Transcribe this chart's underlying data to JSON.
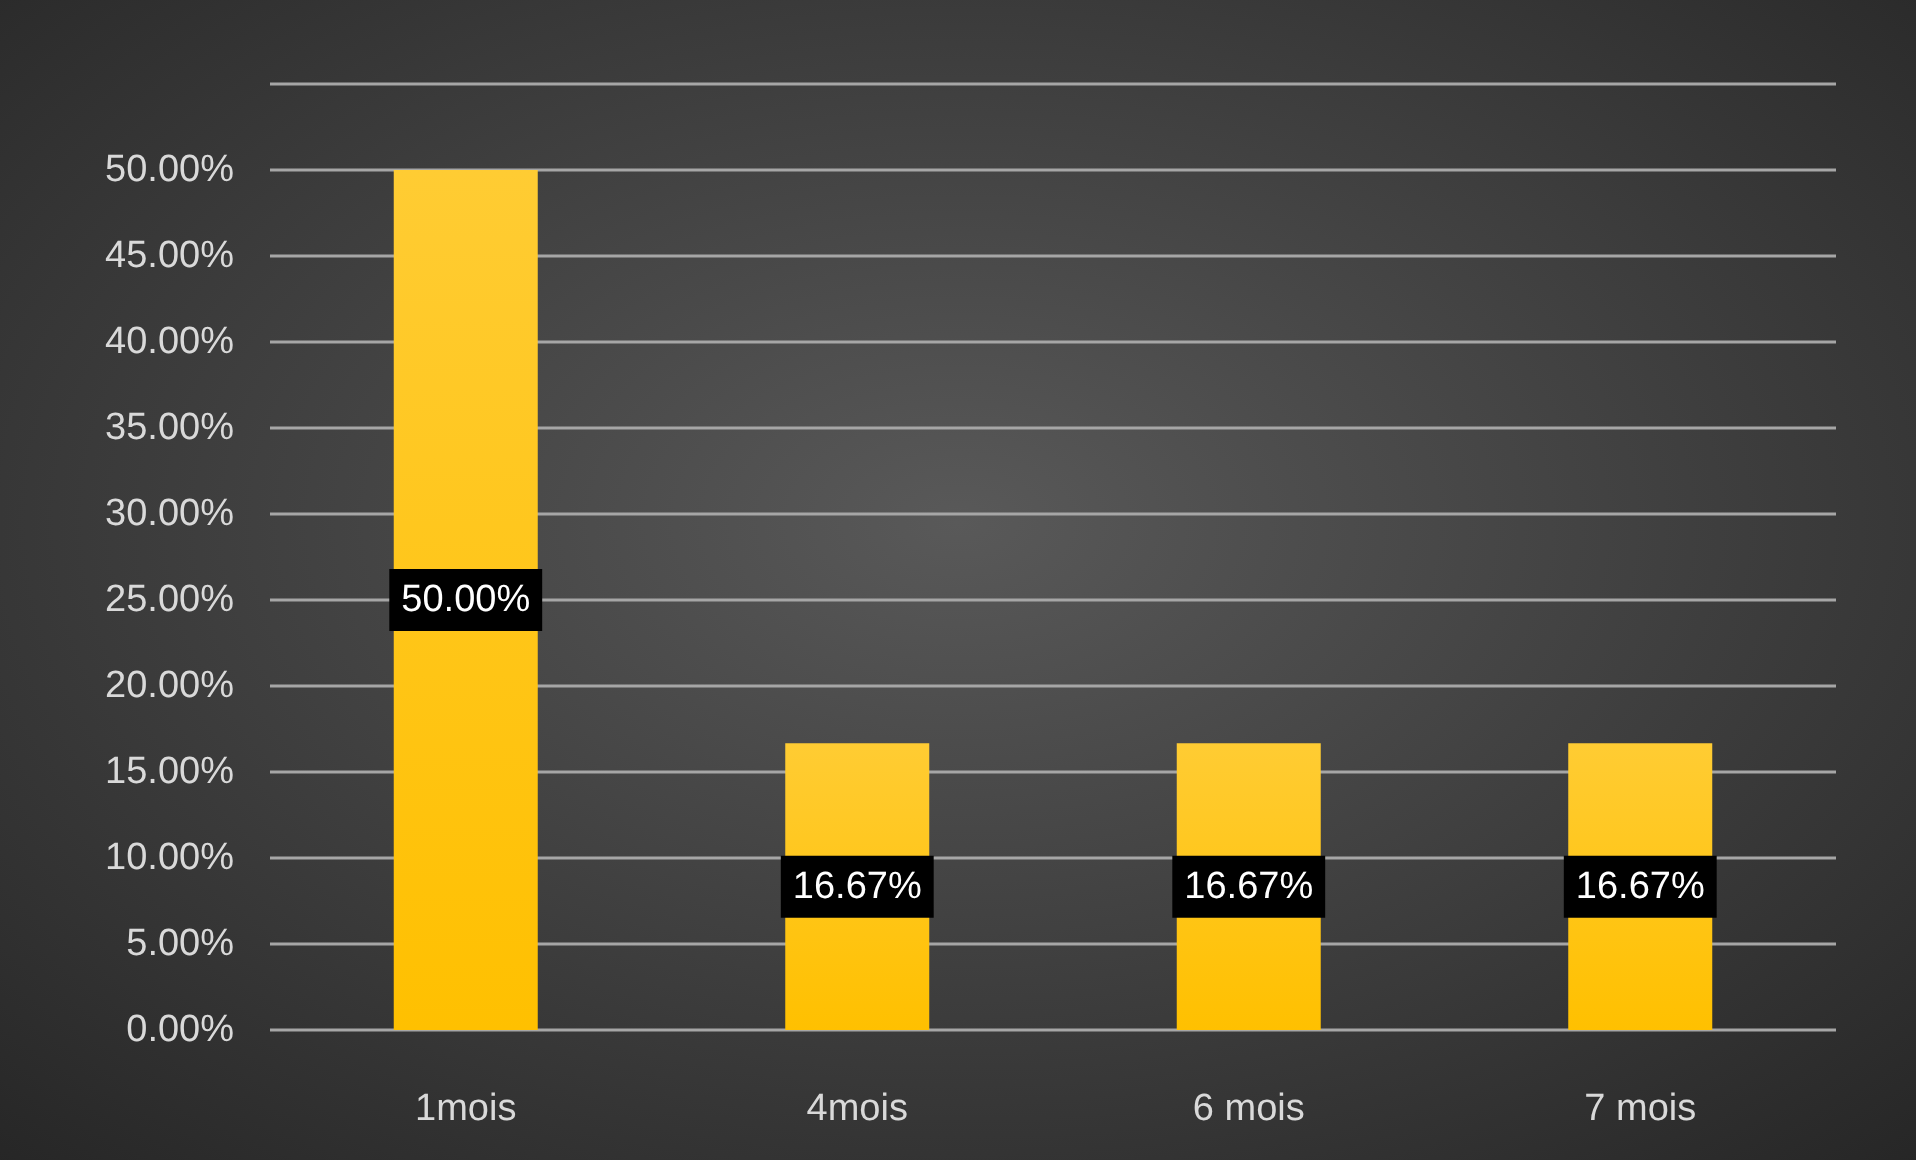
{
  "chart_data": {
    "type": "bar",
    "categories": [
      "1mois",
      "4mois",
      "6 mois",
      "7 mois"
    ],
    "values": [
      50,
      16.67,
      16.67,
      16.67
    ],
    "value_labels": [
      "50.00%",
      "16.67%",
      "16.67%",
      "16.67%"
    ],
    "color": "#ffc000",
    "ylim": [
      0,
      55
    ],
    "yticks": [
      {
        "value": 0,
        "label": "0.00%"
      },
      {
        "value": 5,
        "label": "5.00%"
      },
      {
        "value": 10,
        "label": "10.00%"
      },
      {
        "value": 15,
        "label": "15.00%"
      },
      {
        "value": 20,
        "label": "20.00%"
      },
      {
        "value": 25,
        "label": "25.00%"
      },
      {
        "value": 30,
        "label": "30.00%"
      },
      {
        "value": 35,
        "label": "35.00%"
      },
      {
        "value": 40,
        "label": "40.00%"
      },
      {
        "value": 45,
        "label": "45.00%"
      },
      {
        "value": 50,
        "label": "50.00%"
      },
      {
        "value": 55,
        "label": null
      }
    ],
    "grid": true
  }
}
